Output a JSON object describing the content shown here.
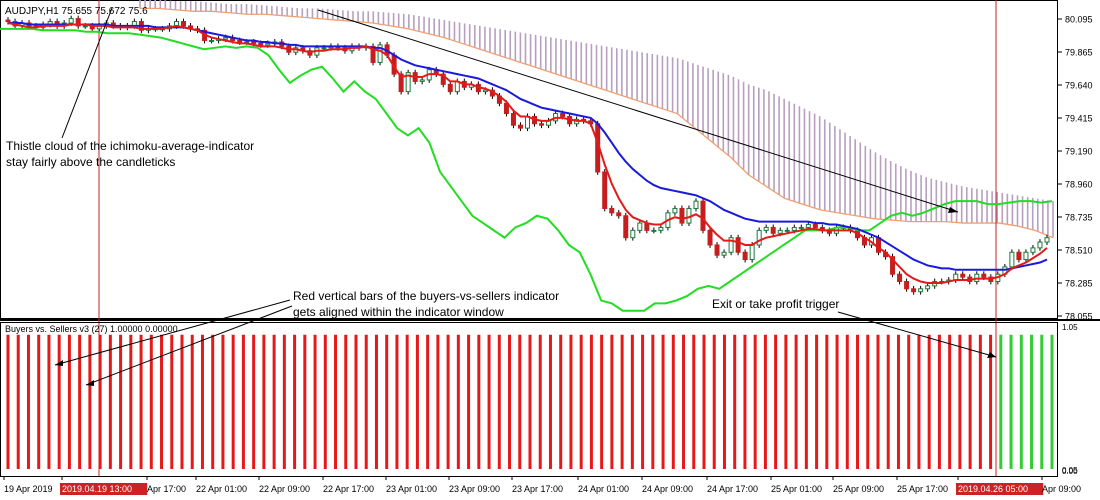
{
  "chart_data": {
    "type": "line",
    "symbol_label": "AUDJPY,H1  75.655 75.672 75.6",
    "indicator_label": "Buyers vs. Sellers v3 (27) 1.00000 0.00000",
    "price_axis": {
      "ticks": [
        "80.095",
        "79.865",
        "79.640",
        "79.415",
        "79.190",
        "78.960",
        "78.735",
        "78.510",
        "78.285",
        "78.055"
      ],
      "range": [
        78.0,
        80.15
      ]
    },
    "indicator_axis": {
      "ticks": [
        "1.05",
        "0.05",
        "0.00"
      ],
      "range": [
        0,
        1.05
      ]
    },
    "time_axis": {
      "ticks": [
        "19 Apr 2019",
        "2019.04.19 13:00",
        "Apr 17:00",
        "22 Apr 01:00",
        "22 Apr 09:00",
        "22 Apr 17:00",
        "23 Apr 01:00",
        "23 Apr 09:00",
        "23 Apr 17:00",
        "24 Apr 01:00",
        "24 Apr 09:00",
        "24 Apr 17:00",
        "25 Apr 01:00",
        "25 Apr 09:00",
        "25 Apr 17:00",
        "2019.04.26 05:00",
        "Apr 09:00"
      ],
      "highlighted": [
        "2019.04.19 13:00",
        "2019.04.26 05:00"
      ]
    },
    "candles": {
      "close": [
        80.03,
        80.0,
        80.02,
        80.0,
        79.99,
        80.01,
        80.03,
        80.0,
        80.02,
        80.05,
        80.0,
        80.0,
        79.98,
        80.0,
        80.02,
        80.0,
        79.99,
        80.0,
        80.03,
        79.97,
        79.98,
        79.98,
        79.98,
        80.0,
        80.03,
        80.0,
        79.98,
        79.97,
        79.9,
        79.9,
        79.91,
        79.92,
        79.9,
        79.89,
        79.89,
        79.88,
        79.87,
        79.88,
        79.89,
        79.86,
        79.82,
        79.85,
        79.83,
        79.8,
        79.85,
        79.85,
        79.86,
        79.85,
        79.83,
        79.86,
        79.85,
        79.86,
        79.75,
        79.87,
        79.8,
        79.67,
        79.55,
        79.68,
        79.62,
        79.63,
        79.7,
        79.67,
        79.6,
        79.55,
        79.62,
        79.58,
        79.6,
        79.55,
        79.56,
        79.52,
        79.47,
        79.4,
        79.32,
        79.3,
        79.38,
        79.33,
        79.32,
        79.35,
        79.4,
        79.38,
        79.33,
        79.36,
        79.35,
        79.33,
        79.0,
        78.75,
        78.72,
        78.7,
        78.55,
        78.6,
        78.65,
        78.6,
        78.6,
        78.62,
        78.72,
        78.75,
        78.65,
        78.75,
        78.8,
        78.6,
        78.5,
        78.43,
        78.45,
        78.55,
        78.45,
        78.4,
        78.5,
        78.6,
        78.62,
        78.58,
        78.6,
        78.6,
        78.62,
        78.62,
        78.64,
        78.62,
        78.6,
        78.58,
        78.62,
        78.62,
        78.6,
        78.55,
        78.5,
        78.55,
        78.45,
        78.42,
        78.3,
        78.25,
        78.2,
        78.18,
        78.2,
        78.22,
        78.25,
        78.25,
        78.26,
        78.3,
        78.28,
        78.25,
        78.3,
        78.28,
        78.25,
        78.3,
        78.35,
        78.45,
        78.4,
        78.45,
        78.48,
        78.52,
        78.55
      ]
    },
    "series": [
      {
        "role": "red moving average",
        "values": [
          80.02,
          80.01,
          80.0,
          79.99,
          79.99,
          80.0,
          80.0,
          80.0,
          80.0,
          80.01,
          80.01,
          80.01,
          80.0,
          80.0,
          80.0,
          79.99,
          79.99,
          79.99,
          79.99,
          79.98,
          79.98,
          79.98,
          79.98,
          79.99,
          80.0,
          79.99,
          79.98,
          79.97,
          79.94,
          79.92,
          79.91,
          79.9,
          79.89,
          79.88,
          79.88,
          79.87,
          79.86,
          79.86,
          79.86,
          79.85,
          79.84,
          79.84,
          79.83,
          79.82,
          79.83,
          79.83,
          79.84,
          79.84,
          79.84,
          79.85,
          79.85,
          79.86,
          79.84,
          79.83,
          79.8,
          79.72,
          79.65,
          79.66,
          79.65,
          79.65,
          79.67,
          79.67,
          79.66,
          79.62,
          79.62,
          79.6,
          79.6,
          79.58,
          79.57,
          79.55,
          79.52,
          79.48,
          79.42,
          79.38,
          79.38,
          79.36,
          79.35,
          79.35,
          79.37,
          79.37,
          79.36,
          79.35,
          79.35,
          79.33,
          79.2,
          79.05,
          78.92,
          78.82,
          78.74,
          78.69,
          78.67,
          78.65,
          78.64,
          78.64,
          78.67,
          78.69,
          78.68,
          78.69,
          78.71,
          78.68,
          78.62,
          78.57,
          78.53,
          78.53,
          78.52,
          78.5,
          78.5,
          78.53,
          78.55,
          78.56,
          78.57,
          78.58,
          78.59,
          78.6,
          78.61,
          78.61,
          78.6,
          78.6,
          78.6,
          78.6,
          78.6,
          78.58,
          78.55,
          78.52,
          78.48,
          78.45,
          78.4,
          78.35,
          78.3,
          78.27,
          78.25,
          78.24,
          78.24,
          78.24,
          78.25,
          78.26,
          78.26,
          78.26,
          78.27,
          78.27,
          78.27,
          78.28,
          78.3,
          78.34,
          78.36,
          78.38,
          78.41,
          78.44,
          78.48
        ]
      },
      {
        "role": "blue moving average",
        "values": [
          80.02,
          80.02,
          80.02,
          80.01,
          80.01,
          80.01,
          80.01,
          80.01,
          80.01,
          80.01,
          80.01,
          80.01,
          80.01,
          80.01,
          80.01,
          80.0,
          80.0,
          80.0,
          80.0,
          80.0,
          80.0,
          79.99,
          79.99,
          79.99,
          79.99,
          79.99,
          79.98,
          79.97,
          79.96,
          79.95,
          79.94,
          79.93,
          79.92,
          79.91,
          79.9,
          79.9,
          79.89,
          79.89,
          79.88,
          79.88,
          79.87,
          79.87,
          79.86,
          79.86,
          79.86,
          79.86,
          79.86,
          79.86,
          79.86,
          79.86,
          79.86,
          79.86,
          79.85,
          79.85,
          79.83,
          79.8,
          79.77,
          79.75,
          79.73,
          79.72,
          79.71,
          79.7,
          79.69,
          79.68,
          79.67,
          79.66,
          79.65,
          79.64,
          79.62,
          79.6,
          79.58,
          79.56,
          79.53,
          79.5,
          79.48,
          79.46,
          79.44,
          79.43,
          79.42,
          79.41,
          79.4,
          79.39,
          79.38,
          79.37,
          79.33,
          79.27,
          79.2,
          79.13,
          79.07,
          79.02,
          78.98,
          78.94,
          78.91,
          78.89,
          78.88,
          78.87,
          78.86,
          78.85,
          78.84,
          78.82,
          78.8,
          78.77,
          78.74,
          78.72,
          78.7,
          78.68,
          78.67,
          78.66,
          78.66,
          78.66,
          78.66,
          78.66,
          78.66,
          78.66,
          78.66,
          78.65,
          78.65,
          78.64,
          78.64,
          78.63,
          78.62,
          78.61,
          78.59,
          78.57,
          78.55,
          78.52,
          78.49,
          78.46,
          78.43,
          78.4,
          78.38,
          78.36,
          78.35,
          78.34,
          78.34,
          78.33,
          78.33,
          78.33,
          78.33,
          78.33,
          78.33,
          78.33,
          78.33,
          78.34,
          78.35,
          78.36,
          78.37,
          78.38,
          78.4
        ]
      },
      {
        "role": "green lagging line",
        "values": [
          79.98,
          79.98,
          79.98,
          79.98,
          79.97,
          79.97,
          79.97,
          79.97,
          79.96,
          79.96,
          79.95,
          79.95,
          79.95,
          79.94,
          79.93,
          79.92,
          79.9,
          79.88,
          79.86,
          79.84,
          79.85,
          79.86,
          79.85,
          79.86,
          79.85,
          79.8,
          79.7,
          79.61,
          79.66,
          79.7,
          79.72,
          79.64,
          79.55,
          79.62,
          79.55,
          79.5,
          79.4,
          79.3,
          79.25,
          79.3,
          79.2,
          79.0,
          78.9,
          78.8,
          78.7,
          78.65,
          78.6,
          78.55,
          78.62,
          78.65,
          78.7,
          78.68,
          78.6,
          78.5,
          78.45,
          78.3,
          78.12,
          78.1,
          78.05,
          78.05,
          78.05,
          78.1,
          78.1,
          78.12,
          78.15,
          78.2,
          78.22,
          78.2,
          78.25,
          78.3,
          78.35,
          78.4,
          78.45,
          78.5,
          78.55,
          78.6,
          78.6,
          78.6,
          78.62,
          78.62,
          78.6,
          78.6,
          78.65,
          78.7,
          78.72,
          78.7,
          78.72,
          78.75,
          78.78,
          78.8,
          78.8,
          78.8,
          78.78,
          78.78,
          78.79,
          78.8,
          78.8,
          78.79,
          78.8
        ]
      },
      {
        "role": "cloud upper edge",
        "values": [
          80.18,
          80.18,
          80.17,
          80.17,
          80.16,
          80.15,
          80.15,
          80.14,
          80.13,
          80.12,
          80.12,
          80.11,
          80.1,
          80.1,
          80.09,
          80.08,
          80.06,
          80.04,
          80.02,
          80.0,
          79.98,
          79.96,
          79.94,
          79.92,
          79.9,
          79.88,
          79.86,
          79.84,
          79.82,
          79.8,
          79.78,
          79.74,
          79.7,
          79.66,
          79.6,
          79.56,
          79.5,
          79.44,
          79.38,
          79.3,
          79.22,
          79.14,
          79.07,
          79.01,
          78.96,
          78.93,
          78.9,
          78.88,
          78.86,
          78.84,
          78.82,
          78.8
        ]
      },
      {
        "role": "cloud lower edge",
        "values": [
          80.12,
          80.12,
          80.11,
          80.1,
          80.1,
          80.09,
          80.08,
          80.08,
          80.07,
          80.06,
          80.05,
          80.04,
          80.03,
          80.02,
          80.0,
          79.98,
          79.95,
          79.92,
          79.88,
          79.84,
          79.8,
          79.76,
          79.72,
          79.68,
          79.64,
          79.6,
          79.56,
          79.52,
          79.48,
          79.44,
          79.4,
          79.3,
          79.2,
          79.1,
          78.98,
          78.9,
          78.82,
          78.78,
          78.74,
          78.72,
          78.7,
          78.68,
          78.67,
          78.66,
          78.66,
          78.66,
          78.65,
          78.65,
          78.65,
          78.63,
          78.6,
          78.55
        ]
      }
    ],
    "indicator_bars": {
      "red_count": 97,
      "green_count": 6
    },
    "annotations": [
      {
        "text": "Thistle cloud of the  ichimoku-average-indicator\nstay fairly above the candleticks"
      },
      {
        "text": "Red vertical bars of the buyers-vs-sellers indicator\ngets aligned within the indicator window"
      },
      {
        "text": "Exit or take profit trigger"
      }
    ],
    "colors": {
      "up_candle": "#1a7a3a",
      "down_candle": "#c41e1e",
      "red_line": "#e41a1a",
      "blue_line": "#1a1adc",
      "green_line": "#22dd22",
      "cloud_fill": "#b89fc0",
      "cloud_edge": "#f0a070",
      "bar_red": "#e41a1a",
      "bar_green": "#33cc33",
      "vline": "#cc2222"
    }
  }
}
